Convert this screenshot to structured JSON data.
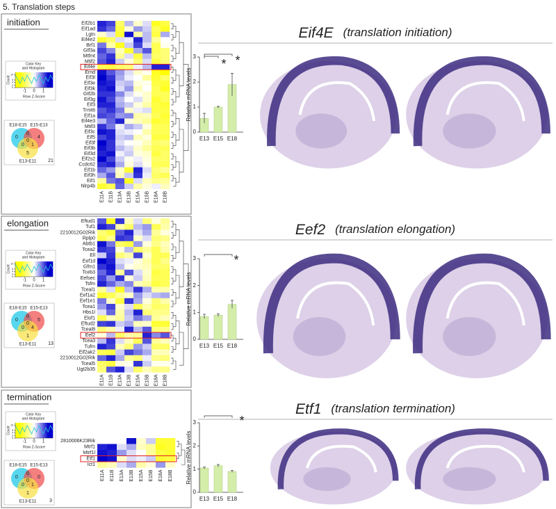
{
  "heading": "5. Translation steps",
  "panels": [
    {
      "label": "initiation",
      "key": {
        "title": [
          "Color Key",
          "and Histogram"
        ],
        "xlabel": "Row Z-Score",
        "xlim": [
          -2,
          2
        ],
        "xticks": [
          -1,
          0,
          1
        ],
        "ylabel": "Count",
        "ylim": [
          0,
          12
        ],
        "yticks": [
          0,
          2,
          4,
          6,
          10
        ]
      },
      "venn": {
        "labels": [
          "E18-E15",
          "E15-E13",
          "E13-E11"
        ],
        "counts": [
          0,
          4,
          5,
          0,
          0,
          1,
          0,
          21
        ]
      },
      "heatmap": {
        "columns": [
          "E11A",
          "E11B",
          "E13A",
          "E13B",
          "E15A",
          "E15B",
          "E18A",
          "E18B"
        ],
        "rows": [
          "Eif2b1",
          "Eif1ad",
          "Lgtn",
          "Eif4e2",
          "Brf1",
          "Gtf3a",
          "Mtfmt",
          "Mtif2",
          "Eif4e",
          "Ernd",
          "Eif3l",
          "Eif3e",
          "Eif3k",
          "Gtf2b",
          "Eif3g",
          "Eif3",
          "Trmt6",
          "Eif1a",
          "Eif4e3",
          "Mtif3",
          "Eif3c",
          "Eif5",
          "Eif3f",
          "Eif3b",
          "Eif3d",
          "Eif2s2",
          "Ccdc62",
          "Eif1b",
          "Eif3h",
          "Eif1",
          "Nlrp4b"
        ],
        "highlight_row": 8,
        "values": [
          [
            1.3,
            1.1,
            -0.9,
            0.4,
            -0.3,
            0.2,
            -1.3,
            -1.1
          ],
          [
            1.2,
            0.9,
            -1.1,
            -0.2,
            0.6,
            0.3,
            -1.0,
            -1.3
          ],
          [
            -0.3,
            0.2,
            -1.2,
            1.4,
            -0.5,
            0.4,
            -1.1,
            0.5
          ],
          [
            -1.2,
            -0.9,
            0.2,
            0.1,
            1.3,
            0.4,
            -0.6,
            0.0
          ],
          [
            0.8,
            -0.5,
            -1.3,
            0.3,
            1.1,
            0.2,
            -1.0,
            -0.1
          ],
          [
            1.1,
            0.7,
            -0.4,
            -1.2,
            0.5,
            1.0,
            -1.0,
            -0.8
          ],
          [
            0.9,
            1.2,
            -0.6,
            0.2,
            -1.1,
            0.4,
            -0.9,
            -0.8
          ],
          [
            1.0,
            1.3,
            0.3,
            -0.2,
            -0.8,
            0.2,
            -1.1,
            -0.8
          ],
          [
            -1.0,
            -1.1,
            -0.9,
            -0.8,
            0.1,
            0.4,
            1.3,
            1.3
          ],
          [
            1.4,
            1.0,
            0.6,
            0.2,
            -0.3,
            -0.1,
            -1.3,
            -1.6
          ],
          [
            1.5,
            1.2,
            0.5,
            0.1,
            0.0,
            -0.6,
            -1.2,
            -0.9
          ],
          [
            1.4,
            1.3,
            0.3,
            0.4,
            -0.2,
            -0.1,
            -1.1,
            -1.2
          ],
          [
            1.3,
            1.4,
            0.2,
            0.6,
            -0.4,
            0.0,
            -1.0,
            -1.3
          ],
          [
            1.2,
            1.2,
            0.7,
            0.2,
            -0.1,
            -0.3,
            -1.0,
            -1.0
          ],
          [
            1.4,
            1.1,
            0.4,
            0.0,
            0.2,
            -0.3,
            -1.2,
            -1.0
          ],
          [
            1.3,
            1.3,
            0.5,
            0.3,
            -0.2,
            -0.5,
            -1.1,
            -1.2
          ],
          [
            1.0,
            1.2,
            0.8,
            -0.3,
            0.1,
            0.2,
            -1.1,
            -1.1
          ],
          [
            1.1,
            1.0,
            0.6,
            0.7,
            -0.5,
            -0.4,
            -1.0,
            -1.2
          ],
          [
            0.4,
            0.9,
            1.3,
            -0.2,
            -0.4,
            -0.6,
            -1.2,
            -1.1
          ],
          [
            1.2,
            0.8,
            0.1,
            0.5,
            0.3,
            -0.2,
            -1.0,
            -1.0
          ],
          [
            1.4,
            1.3,
            0.2,
            0.1,
            0.0,
            -0.5,
            -1.0,
            -1.0
          ],
          [
            1.1,
            1.3,
            0.3,
            0.4,
            -0.4,
            -0.2,
            -1.1,
            -1.1
          ],
          [
            1.5,
            1.2,
            0.2,
            0.0,
            -0.1,
            -0.4,
            -0.9,
            -0.8
          ],
          [
            1.4,
            1.2,
            0.4,
            0.2,
            -0.3,
            -0.6,
            -1.0,
            -1.0
          ],
          [
            1.3,
            1.4,
            0.1,
            0.3,
            -0.2,
            -0.3,
            -1.1,
            -0.9
          ],
          [
            1.5,
            1.1,
            0.3,
            -0.1,
            0.1,
            -0.2,
            -0.9,
            -0.9
          ],
          [
            1.2,
            1.3,
            0.5,
            -0.2,
            0.2,
            -0.1,
            -1.0,
            -1.0
          ],
          [
            0.9,
            0.6,
            -0.3,
            -1.2,
            1.3,
            0.2,
            -0.8,
            -0.6
          ],
          [
            0.5,
            1.0,
            -0.4,
            0.3,
            1.2,
            0.1,
            -0.9,
            -1.0
          ],
          [
            -0.6,
            0.8,
            1.0,
            -1.3,
            0.2,
            -0.4,
            -0.7,
            -0.6
          ],
          [
            -1.2,
            -1.0,
            0.9,
            0.3,
            -0.5,
            -0.2,
            0.1,
            -0.4
          ]
        ]
      }
    },
    {
      "label": "elongation",
      "key": {
        "title": [
          "Color Key",
          "and Histogram"
        ],
        "xlabel": "Row Z-Score",
        "xlim": [
          -2,
          2
        ],
        "xticks": [
          -1,
          0,
          1
        ],
        "ylabel": "Count",
        "ylim": [
          0,
          12
        ],
        "yticks": [
          0,
          2,
          4,
          6,
          10
        ]
      },
      "venn": {
        "labels": [
          "E18-E15",
          "E15-E13",
          "E13-E11"
        ],
        "counts": [
          0,
          5,
          1,
          0,
          0,
          4,
          0,
          13
        ]
      },
      "heatmap": {
        "columns": [
          "E11A",
          "E11B",
          "E13A",
          "E13B",
          "E15A",
          "E15B",
          "E18A",
          "E18B"
        ],
        "rows": [
          "Eftud1",
          "Tuf1",
          "2210012G02Rik",
          "Rplp0",
          "Abtb1",
          "Tcea2",
          "Ell",
          "Eef1d",
          "Gfm1",
          "Tceb3",
          "Eefsec",
          "Tsfm",
          "Tceal1",
          "Eef1a2",
          "Eef1e1",
          "Tcea1",
          "Hbs1l",
          "Elof1",
          "Eftud2",
          "Tceal8",
          "Eef2",
          "Tcea3",
          "Tufm",
          "Eif2ak2",
          "2210012G02Rik",
          "Tceal5",
          "Ugt2b35"
        ],
        "highlight_row": 20,
        "values": [
          [
            1.0,
            -1.3,
            1.2,
            -0.4,
            0.2,
            -0.8,
            -0.2,
            -0.6
          ],
          [
            1.3,
            1.1,
            -0.5,
            -0.9,
            0.4,
            0.6,
            -1.0,
            -0.5
          ],
          [
            -0.8,
            -1.1,
            1.0,
            1.3,
            0.2,
            0.5,
            -0.6,
            -0.2
          ],
          [
            -1.0,
            -0.7,
            1.2,
            1.1,
            -0.3,
            0.2,
            -0.8,
            -0.7
          ],
          [
            1.4,
            0.8,
            -0.9,
            -1.1,
            0.6,
            -0.2,
            -0.7,
            -0.4
          ],
          [
            1.2,
            1.1,
            -0.2,
            0.4,
            -0.9,
            -0.6,
            -1.0,
            -0.5
          ],
          [
            0.3,
            1.2,
            -0.8,
            -0.5,
            1.1,
            -0.3,
            -1.0,
            -1.0
          ],
          [
            1.5,
            1.3,
            0.2,
            0.1,
            -0.2,
            -0.5,
            -1.0,
            -0.7
          ],
          [
            1.2,
            1.4,
            0.4,
            -0.1,
            -0.3,
            -0.4,
            -0.9,
            -0.9
          ],
          [
            0.9,
            1.3,
            -0.6,
            1.0,
            0.2,
            -0.3,
            -1.1,
            -1.0
          ],
          [
            1.1,
            0.6,
            1.2,
            -0.2,
            0.3,
            -0.4,
            -1.0,
            -1.0
          ],
          [
            1.3,
            0.9,
            0.5,
            0.7,
            -0.4,
            -0.6,
            -1.1,
            -1.0
          ],
          [
            -0.6,
            0.2,
            -1.3,
            0.4,
            1.2,
            0.5,
            -0.5,
            -0.5
          ],
          [
            -1.2,
            -1.0,
            -0.6,
            -0.3,
            0.6,
            0.2,
            0.4,
            0.5
          ],
          [
            0.8,
            -0.3,
            -1.1,
            1.2,
            0.5,
            -0.2,
            -0.8,
            -0.5
          ],
          [
            0.6,
            1.1,
            -0.3,
            0.2,
            -1.0,
            -0.5,
            -0.9,
            -0.8
          ],
          [
            0.2,
            0.9,
            -0.5,
            0.4,
            1.3,
            -0.8,
            -0.7,
            -0.7
          ],
          [
            -1.0,
            -0.4,
            -0.6,
            0.3,
            0.8,
            0.5,
            -0.6,
            -0.4
          ],
          [
            1.1,
            1.2,
            0.3,
            0.5,
            -0.4,
            -0.3,
            -1.2,
            -1.2
          ],
          [
            -0.8,
            -0.5,
            0.1,
            1.3,
            0.4,
            1.0,
            -0.8,
            -0.7
          ],
          [
            -0.2,
            0.4,
            -0.9,
            -0.5,
            -0.6,
            1.3,
            0.7,
            1.0
          ],
          [
            0.4,
            1.2,
            0.2,
            -0.4,
            -1.0,
            1.0,
            -0.6,
            -0.4
          ],
          [
            1.3,
            1.1,
            -0.4,
            -0.8,
            0.6,
            0.3,
            -0.9,
            -0.9
          ],
          [
            -1.0,
            -1.1,
            0.3,
            1.1,
            0.8,
            0.5,
            -0.4,
            -0.4
          ],
          [
            0.9,
            1.3,
            0.5,
            -0.6,
            -0.8,
            0.1,
            -0.7,
            -0.8
          ],
          [
            -0.9,
            -1.1,
            -0.2,
            -0.1,
            1.2,
            0.3,
            -0.1,
            -0.1
          ],
          [
            -0.8,
            1.0,
            1.3,
            0.2,
            -0.9,
            -0.4,
            -0.7,
            -0.7
          ]
        ]
      }
    },
    {
      "label": "termination",
      "key": {
        "title": [
          "Color Key",
          "and Histogram"
        ],
        "xlabel": "Row Z-Score",
        "xlim": [
          -2,
          2
        ],
        "xticks": [
          -1,
          0,
          1
        ],
        "ylabel": "Count",
        "ylim": [
          0,
          12
        ],
        "yticks": [
          0,
          2,
          4,
          6,
          10
        ]
      },
      "venn": {
        "labels": [
          "E18-E15",
          "E15-E13",
          "E13-E11"
        ],
        "counts": [
          0,
          0,
          1,
          0,
          0,
          1,
          0,
          3
        ]
      },
      "heatmap": {
        "columns": [
          "E11A",
          "E11B",
          "E13A",
          "E13B",
          "E15A",
          "E15B",
          "E18A",
          "E18B"
        ],
        "rows": [
          "2810006K23Rik",
          "Mtrf1",
          "Mtrf1l",
          "Etf1",
          "Ict1"
        ],
        "highlight_row": 3,
        "values": [
          [
            0.0,
            0.0,
            0.0,
            1.4,
            -0.3,
            0.3,
            -1.2,
            -1.2
          ],
          [
            1.3,
            1.4,
            0.2,
            0.5,
            -0.4,
            -0.6,
            -1.3,
            -1.2
          ],
          [
            1.4,
            1.3,
            0.6,
            0.2,
            0.0,
            -0.6,
            -1.1,
            -1.2
          ],
          [
            1.5,
            1.4,
            -0.3,
            0.2,
            0.1,
            0.3,
            -1.2,
            -1.1
          ],
          [
            -0.6,
            -0.4,
            0.2,
            0.5,
            -0.5,
            -0.2,
            0.6,
            -0.3
          ]
        ]
      }
    }
  ],
  "chart_data": [
    {
      "type": "bar",
      "title": "Eif4E",
      "subtitle": "(translation initiation)",
      "ylabel": "Relative mRNA levels",
      "categories": [
        "E13",
        "E15",
        "E18"
      ],
      "values": [
        0.55,
        1.0,
        1.9
      ],
      "errors": [
        0.2,
        0.03,
        0.45
      ],
      "color": "#d4eeaa",
      "ylim": [
        0,
        3
      ],
      "yticks": [
        0,
        1,
        2,
        3
      ],
      "annotations": [
        "*",
        "*"
      ]
    },
    {
      "type": "bar",
      "title": "Eef2",
      "subtitle": "(translation elongation)",
      "ylabel": "Relative mRNA levels",
      "categories": [
        "E13",
        "E15",
        "E18"
      ],
      "values": [
        0.85,
        0.9,
        1.3
      ],
      "errors": [
        0.08,
        0.05,
        0.15
      ],
      "color": "#d4eeaa",
      "ylim": [
        0,
        3
      ],
      "yticks": [
        0,
        1,
        2,
        3
      ],
      "annotations": [
        "*"
      ]
    },
    {
      "type": "bar",
      "title": "Etf1",
      "subtitle": "(translation termination)",
      "ylabel": "Relative mRNA levels",
      "categories": [
        "E13",
        "E15",
        "E18"
      ],
      "values": [
        1.05,
        1.15,
        0.9
      ],
      "errors": [
        0.04,
        0.05,
        0.04
      ],
      "color": "#d4eeaa",
      "ylim": [
        0,
        3
      ],
      "yticks": [
        0,
        1,
        2,
        3
      ],
      "annotations": [
        "*"
      ]
    }
  ]
}
